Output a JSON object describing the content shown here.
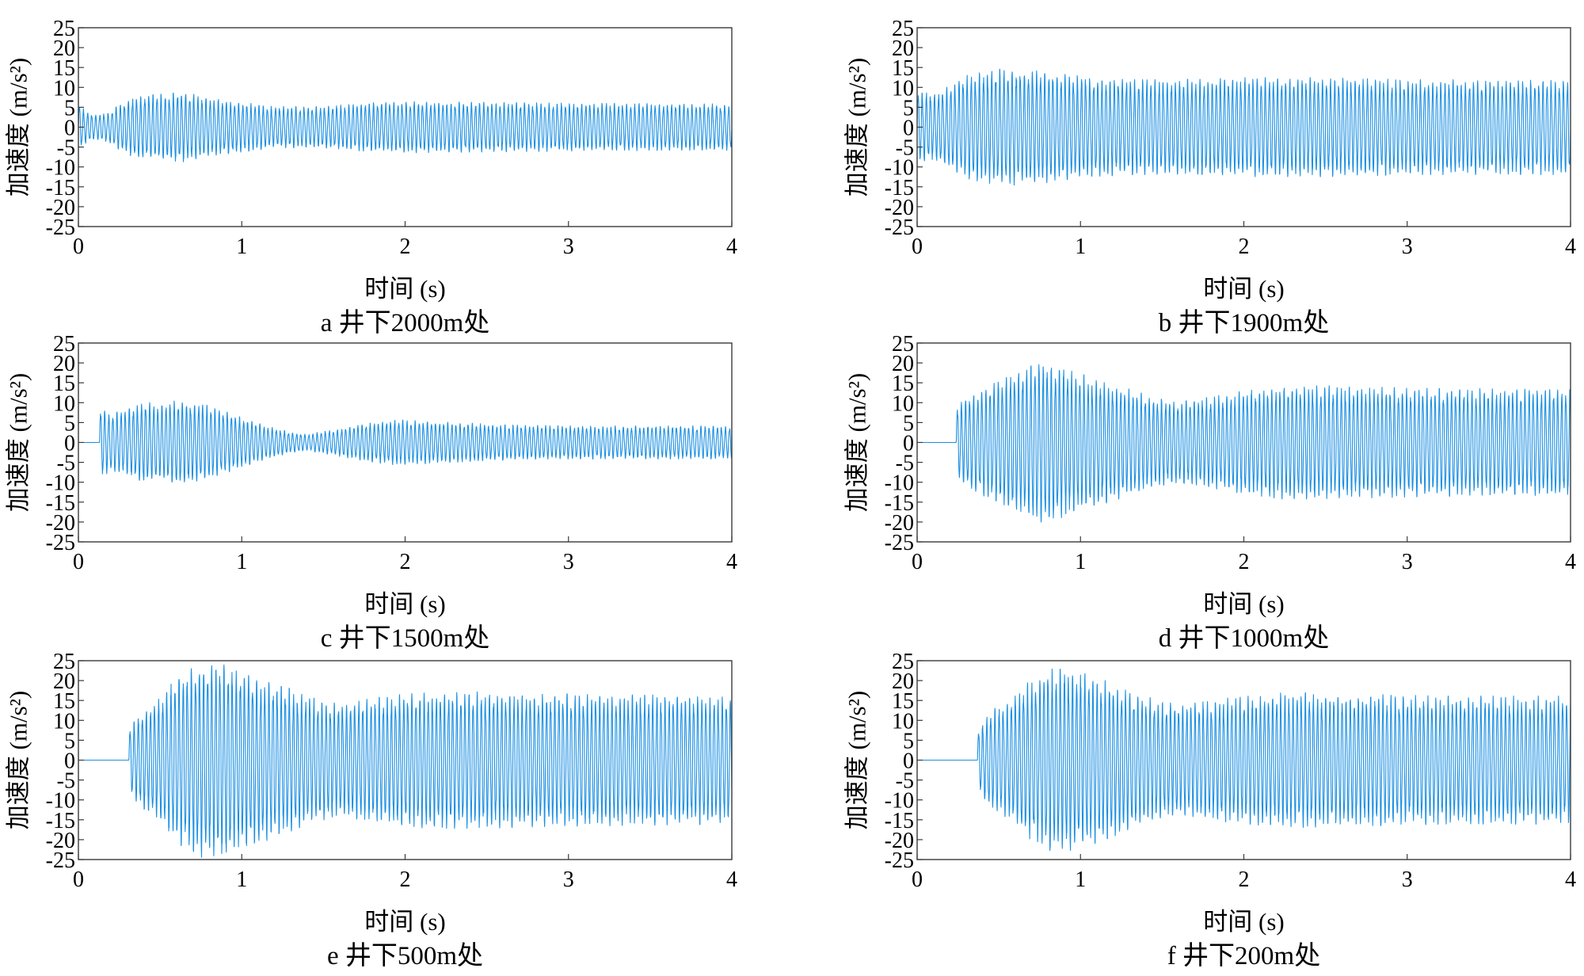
{
  "figure": {
    "series_color": "#1b8fe2",
    "frame_color": "#3a3a3a"
  },
  "chart_data": [
    {
      "type": "line",
      "caption": "a 井下2000m处",
      "xlabel": "时间 (s)",
      "ylabel": "加速度 (m/s²)",
      "xlim": [
        0,
        4
      ],
      "ylim": [
        -25,
        25
      ],
      "xticks": [
        0,
        1,
        2,
        3,
        4
      ],
      "yticks": [
        25,
        20,
        15,
        10,
        5,
        0,
        -5,
        -10,
        -15,
        -20,
        -25
      ],
      "series": [
        {
          "onset_s": 0,
          "dominant_freq_hz": 40,
          "amplitude_envelope": [
            [
              0,
              6
            ],
            [
              0.04,
              4
            ],
            [
              0.1,
              3
            ],
            [
              0.18,
              3.5
            ],
            [
              0.25,
              5.5
            ],
            [
              0.35,
              7.5
            ],
            [
              0.5,
              8
            ],
            [
              0.65,
              8.5
            ],
            [
              0.8,
              7
            ],
            [
              1.0,
              6
            ],
            [
              1.2,
              5
            ],
            [
              1.5,
              5
            ],
            [
              1.8,
              6
            ],
            [
              2.0,
              6.2
            ],
            [
              2.5,
              6
            ],
            [
              3.0,
              5.8
            ],
            [
              4.0,
              5.6
            ]
          ]
        }
      ]
    },
    {
      "type": "line",
      "caption": "b 井下1900m处",
      "xlabel": "时间 (s)",
      "ylabel": "加速度 (m/s²)",
      "xlim": [
        0,
        4
      ],
      "ylim": [
        -25,
        25
      ],
      "xticks": [
        0,
        1,
        2,
        3,
        4
      ],
      "yticks": [
        25,
        20,
        15,
        10,
        5,
        0,
        -5,
        -10,
        -15,
        -20,
        -25
      ],
      "series": [
        {
          "onset_s": 0,
          "dominant_freq_hz": 40,
          "amplitude_envelope": [
            [
              0,
              9
            ],
            [
              0.1,
              8
            ],
            [
              0.2,
              10
            ],
            [
              0.3,
              12.5
            ],
            [
              0.5,
              14
            ],
            [
              0.7,
              14
            ],
            [
              0.9,
              13
            ],
            [
              1.1,
              12
            ],
            [
              1.3,
              11.5
            ],
            [
              1.6,
              11.5
            ],
            [
              2.0,
              12
            ],
            [
              2.5,
              12
            ],
            [
              3.0,
              11.5
            ],
            [
              4.0,
              11.5
            ]
          ]
        }
      ]
    },
    {
      "type": "line",
      "caption": "c 井下1500m处",
      "xlabel": "时间 (s)",
      "ylabel": "加速度 (m/s²)",
      "xlim": [
        0,
        4
      ],
      "ylim": [
        -25,
        25
      ],
      "xticks": [
        0,
        1,
        2,
        3,
        4
      ],
      "yticks": [
        25,
        20,
        15,
        10,
        5,
        0,
        -5,
        -10,
        -15,
        -20,
        -25
      ],
      "series": [
        {
          "onset_s": 0.13,
          "dominant_freq_hz": 40,
          "amplitude_envelope": [
            [
              0.13,
              8.5
            ],
            [
              0.2,
              7
            ],
            [
              0.3,
              8
            ],
            [
              0.4,
              10
            ],
            [
              0.5,
              9
            ],
            [
              0.6,
              10.5
            ],
            [
              0.75,
              9.5
            ],
            [
              0.9,
              7.5
            ],
            [
              1.0,
              6
            ],
            [
              1.15,
              4
            ],
            [
              1.3,
              2.5
            ],
            [
              1.4,
              2
            ],
            [
              1.55,
              3
            ],
            [
              1.75,
              4.5
            ],
            [
              1.95,
              5.5
            ],
            [
              2.2,
              5
            ],
            [
              2.6,
              4.3
            ],
            [
              3.0,
              4
            ],
            [
              4.0,
              4
            ]
          ]
        }
      ]
    },
    {
      "type": "line",
      "caption": "d 井下1000m处",
      "xlabel": "时间 (s)",
      "ylabel": "加速度 (m/s²)",
      "xlim": [
        0,
        4
      ],
      "ylim": [
        -25,
        25
      ],
      "xticks": [
        0,
        1,
        2,
        3,
        4
      ],
      "yticks": [
        25,
        20,
        15,
        10,
        5,
        0,
        -5,
        -10,
        -15,
        -20,
        -25
      ],
      "series": [
        {
          "onset_s": 0.24,
          "dominant_freq_hz": 40,
          "amplitude_envelope": [
            [
              0.24,
              9
            ],
            [
              0.35,
              12
            ],
            [
              0.5,
              15
            ],
            [
              0.65,
              18
            ],
            [
              0.78,
              19.5
            ],
            [
              0.9,
              18
            ],
            [
              1.05,
              16
            ],
            [
              1.25,
              13.5
            ],
            [
              1.45,
              11
            ],
            [
              1.6,
              10
            ],
            [
              1.8,
              11
            ],
            [
              2.0,
              12.5
            ],
            [
              2.3,
              14
            ],
            [
              2.7,
              13.5
            ],
            [
              3.2,
              13
            ],
            [
              4.0,
              13
            ]
          ]
        }
      ]
    },
    {
      "type": "line",
      "caption": "e 井下500m处",
      "xlabel": "时间 (s)",
      "ylabel": "加速度 (m/s²)",
      "xlim": [
        0,
        4
      ],
      "ylim": [
        -25,
        25
      ],
      "xticks": [
        0,
        1,
        2,
        3,
        4
      ],
      "yticks": [
        25,
        20,
        15,
        10,
        5,
        0,
        -5,
        -10,
        -15,
        -20,
        -25
      ],
      "series": [
        {
          "onset_s": 0.31,
          "dominant_freq_hz": 40,
          "amplitude_envelope": [
            [
              0.31,
              8
            ],
            [
              0.4,
              12
            ],
            [
              0.5,
              15
            ],
            [
              0.6,
              20
            ],
            [
              0.75,
              23.5
            ],
            [
              0.9,
              23
            ],
            [
              1.05,
              21
            ],
            [
              1.25,
              18
            ],
            [
              1.45,
              15
            ],
            [
              1.6,
              13.5
            ],
            [
              1.8,
              15
            ],
            [
              2.1,
              16.5
            ],
            [
              2.5,
              16.5
            ],
            [
              3.0,
              16
            ],
            [
              4.0,
              15.5
            ]
          ]
        }
      ]
    },
    {
      "type": "line",
      "caption": "f 井下200m处",
      "xlabel": "时间 (s)",
      "ylabel": "加速度 (m/s²)",
      "xlim": [
        0,
        4
      ],
      "ylim": [
        -25,
        25
      ],
      "xticks": [
        0,
        1,
        2,
        3,
        4
      ],
      "yticks": [
        25,
        20,
        15,
        10,
        5,
        0,
        -5,
        -10,
        -15,
        -20,
        -25
      ],
      "series": [
        {
          "onset_s": 0.37,
          "dominant_freq_hz": 40,
          "amplitude_envelope": [
            [
              0.37,
              7
            ],
            [
              0.45,
              12
            ],
            [
              0.55,
              14
            ],
            [
              0.65,
              18
            ],
            [
              0.8,
              22
            ],
            [
              0.95,
              22
            ],
            [
              1.1,
              20
            ],
            [
              1.3,
              17
            ],
            [
              1.5,
              14
            ],
            [
              1.65,
              13.5
            ],
            [
              1.9,
              15
            ],
            [
              2.3,
              16.5
            ],
            [
              2.7,
              16
            ],
            [
              3.2,
              15.5
            ],
            [
              4.0,
              15.5
            ]
          ]
        }
      ]
    }
  ]
}
